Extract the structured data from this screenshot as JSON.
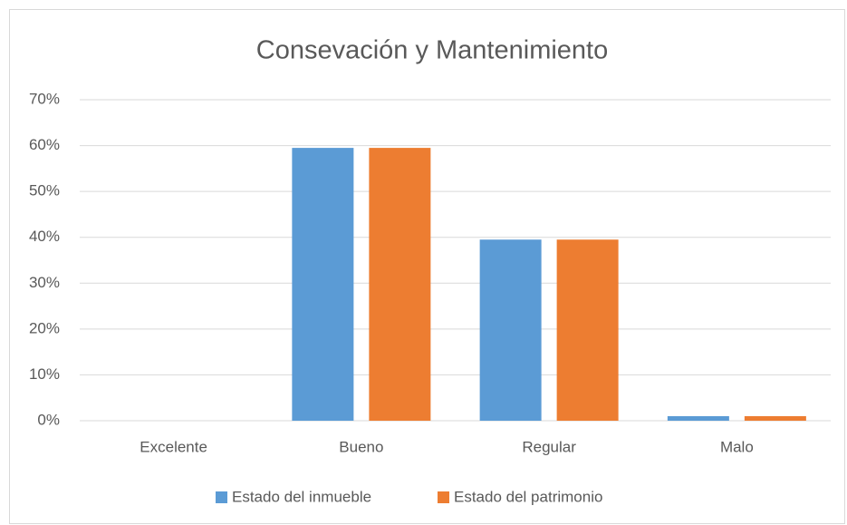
{
  "chart_data": {
    "type": "bar",
    "title": "Consevación y Mantenimiento",
    "categories": [
      "Excelente",
      "Bueno",
      "Regular",
      "Malo"
    ],
    "series": [
      {
        "name": "Estado del inmueble",
        "color": "#5b9bd5",
        "values": [
          0,
          59.5,
          39.5,
          1
        ]
      },
      {
        "name": "Estado del patrimonio",
        "color": "#ed7d31",
        "values": [
          0,
          59.5,
          39.5,
          1
        ]
      }
    ],
    "ylim": [
      0,
      70
    ],
    "yticks": [
      {
        "value": 0,
        "label": "0%"
      },
      {
        "value": 10,
        "label": "10%"
      },
      {
        "value": 20,
        "label": "20%"
      },
      {
        "value": 30,
        "label": "30%"
      },
      {
        "value": 40,
        "label": "40%"
      },
      {
        "value": 50,
        "label": "50%"
      },
      {
        "value": 60,
        "label": "60%"
      },
      {
        "value": 70,
        "label": "70%"
      }
    ],
    "grid": true,
    "legend": "bottom"
  }
}
